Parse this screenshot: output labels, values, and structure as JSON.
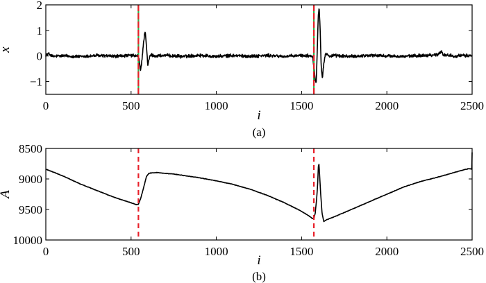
{
  "colors": {
    "signal": "#000000",
    "event_red": "#e8202a",
    "event_green": "#2fb34a",
    "axes": "#000000"
  },
  "chart_data": [
    {
      "id": "a",
      "type": "line",
      "caption": "(a)",
      "xlabel": "i",
      "ylabel": "x",
      "xlim": [
        0,
        2500
      ],
      "ylim": [
        -1.5,
        2
      ],
      "xticks": [
        0,
        500,
        1000,
        1500,
        2000,
        2500
      ],
      "yticks": [
        -1,
        0,
        1,
        2
      ],
      "yticklabels": [
        "−1",
        "0",
        "1",
        "2"
      ],
      "y_inverted": false,
      "grid": false,
      "event_lines": [
        {
          "x": 543,
          "style": "red-green dashed"
        },
        {
          "x": 1572,
          "style": "red-green dashed"
        }
      ],
      "series": [
        {
          "noise_level": 0.05,
          "points": [
            [
              0,
              0.05
            ],
            [
              20,
              0.08
            ],
            [
              40,
              -0.02
            ],
            [
              100,
              0.01
            ],
            [
              200,
              -0.03
            ],
            [
              300,
              0.02
            ],
            [
              400,
              -0.01
            ],
            [
              500,
              0.02
            ],
            [
              540,
              0.0
            ],
            [
              548,
              -0.15
            ],
            [
              555,
              -0.6
            ],
            [
              562,
              -0.25
            ],
            [
              570,
              0.3
            ],
            [
              578,
              0.8
            ],
            [
              583,
              1.0
            ],
            [
              590,
              0.4
            ],
            [
              598,
              -0.4
            ],
            [
              606,
              -0.1
            ],
            [
              615,
              0.05
            ],
            [
              640,
              0.0
            ],
            [
              700,
              0.02
            ],
            [
              800,
              -0.02
            ],
            [
              900,
              0.03
            ],
            [
              1000,
              -0.02
            ],
            [
              1100,
              0.02
            ],
            [
              1200,
              -0.01
            ],
            [
              1300,
              0.02
            ],
            [
              1400,
              -0.02
            ],
            [
              1500,
              0.02
            ],
            [
              1565,
              0.0
            ],
            [
              1572,
              -0.4
            ],
            [
              1580,
              -0.9
            ],
            [
              1586,
              -1.05
            ],
            [
              1592,
              0.3
            ],
            [
              1598,
              1.6
            ],
            [
              1603,
              1.95
            ],
            [
              1609,
              1.0
            ],
            [
              1615,
              -0.4
            ],
            [
              1622,
              -0.85
            ],
            [
              1630,
              -0.3
            ],
            [
              1640,
              0.1
            ],
            [
              1660,
              0.0
            ],
            [
              1700,
              0.01
            ],
            [
              1800,
              -0.02
            ],
            [
              1900,
              0.03
            ],
            [
              2000,
              0.0
            ],
            [
              2100,
              -0.02
            ],
            [
              2200,
              0.02
            ],
            [
              2300,
              0.05
            ],
            [
              2320,
              0.2
            ],
            [
              2330,
              0.05
            ],
            [
              2400,
              0.0
            ],
            [
              2500,
              0.02
            ]
          ]
        }
      ]
    },
    {
      "id": "b",
      "type": "line",
      "caption": "(b)",
      "xlabel": "i",
      "ylabel": "A",
      "xlim": [
        0,
        2500
      ],
      "ylim": [
        8500,
        10000
      ],
      "xticks": [
        0,
        500,
        1000,
        1500,
        2000,
        2500
      ],
      "yticks": [
        8500,
        9000,
        9500,
        10000
      ],
      "yticklabels": [
        "8500",
        "9000",
        "9500",
        "10000"
      ],
      "y_inverted": true,
      "grid": false,
      "event_lines": [
        {
          "x": 543,
          "style": "red dashed"
        },
        {
          "x": 1572,
          "style": "red dashed"
        }
      ],
      "series": [
        {
          "noise_level": 3,
          "points": [
            [
              0,
              8840
            ],
            [
              100,
              8950
            ],
            [
              200,
              9080
            ],
            [
              300,
              9190
            ],
            [
              400,
              9300
            ],
            [
              500,
              9390
            ],
            [
              530,
              9420
            ],
            [
              543,
              9415
            ],
            [
              555,
              9330
            ],
            [
              570,
              9180
            ],
            [
              590,
              8960
            ],
            [
              605,
              8905
            ],
            [
              650,
              8895
            ],
            [
              750,
              8920
            ],
            [
              900,
              8980
            ],
            [
              1000,
              9030
            ],
            [
              1100,
              9090
            ],
            [
              1200,
              9170
            ],
            [
              1300,
              9270
            ],
            [
              1400,
              9390
            ],
            [
              1500,
              9530
            ],
            [
              1540,
              9600
            ],
            [
              1565,
              9650
            ],
            [
              1572,
              9650
            ],
            [
              1580,
              9560
            ],
            [
              1588,
              9330
            ],
            [
              1594,
              9100
            ],
            [
              1598,
              8800
            ],
            [
              1602,
              8760
            ],
            [
              1606,
              8950
            ],
            [
              1612,
              9250
            ],
            [
              1620,
              9560
            ],
            [
              1630,
              9700
            ],
            [
              1645,
              9670
            ],
            [
              1700,
              9610
            ],
            [
              1800,
              9490
            ],
            [
              1900,
              9370
            ],
            [
              2000,
              9250
            ],
            [
              2100,
              9130
            ],
            [
              2200,
              9040
            ],
            [
              2300,
              8970
            ],
            [
              2400,
              8890
            ],
            [
              2480,
              8830
            ],
            [
              2498,
              8840
            ],
            [
              2500,
              8560
            ]
          ]
        }
      ]
    }
  ]
}
